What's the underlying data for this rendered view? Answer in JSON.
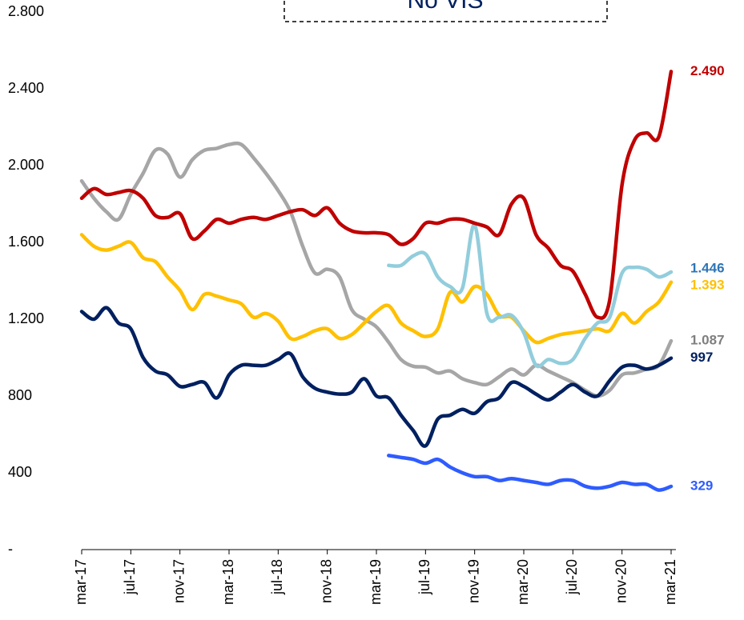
{
  "chart_data": {
    "type": "line",
    "title": "No VIS",
    "categories": [
      "mar-17",
      null,
      null,
      null,
      "jul-17",
      null,
      null,
      null,
      "nov-17",
      null,
      null,
      null,
      "mar-18",
      null,
      null,
      null,
      "jul-18",
      null,
      null,
      null,
      "nov-18",
      null,
      null,
      null,
      "mar-19",
      null,
      null,
      null,
      "jul-19",
      null,
      null,
      null,
      "nov-19",
      null,
      null,
      null,
      "mar-20",
      null,
      null,
      null,
      "jul-20",
      null,
      null,
      null,
      "nov-20",
      null,
      null,
      null,
      "mar-21"
    ],
    "ylim": [
      0,
      2800
    ],
    "yticks": [
      {
        "value": 0,
        "label": "-"
      },
      400,
      800,
      {
        "value": 1200,
        "label": "1.200"
      },
      {
        "value": 1600,
        "label": "1.600"
      },
      {
        "value": 2000,
        "label": "2.000"
      },
      {
        "value": 2400,
        "label": "2.400"
      },
      {
        "value": 2800,
        "label": "2.800"
      }
    ],
    "grid": false,
    "series": [
      {
        "color": "#a6a6a6",
        "label_color": "#7f7f7f",
        "end_label": "1.087",
        "values": [
          1920,
          1830,
          1760,
          1720,
          1850,
          1960,
          2080,
          2060,
          1940,
          2030,
          2080,
          2090,
          2110,
          2110,
          2040,
          1960,
          1870,
          1760,
          1580,
          1440,
          1460,
          1420,
          1250,
          1200,
          1160,
          1080,
          990,
          955,
          950,
          920,
          930,
          890,
          870,
          860,
          900,
          940,
          910,
          960,
          930,
          900,
          870,
          830,
          800,
          830,
          910,
          920,
          940,
          960,
          1087
        ]
      },
      {
        "color": "#ffc000",
        "label_color": "#ffc000",
        "end_label": "1.393",
        "values": [
          1640,
          1580,
          1560,
          1580,
          1600,
          1520,
          1500,
          1420,
          1350,
          1250,
          1330,
          1320,
          1300,
          1280,
          1210,
          1230,
          1190,
          1100,
          1110,
          1140,
          1150,
          1100,
          1120,
          1180,
          1240,
          1270,
          1180,
          1140,
          1110,
          1150,
          1340,
          1290,
          1370,
          1330,
          1220,
          1210,
          1140,
          1080,
          1100,
          1120,
          1130,
          1140,
          1150,
          1140,
          1230,
          1180,
          1240,
          1290,
          1393
        ]
      },
      {
        "color": "#002060",
        "label_color": "#002060",
        "end_label": "997",
        "values": [
          1240,
          1200,
          1260,
          1180,
          1150,
          1000,
          930,
          910,
          850,
          860,
          870,
          790,
          910,
          960,
          960,
          960,
          990,
          1020,
          900,
          840,
          820,
          810,
          820,
          890,
          800,
          790,
          700,
          620,
          540,
          680,
          700,
          730,
          710,
          770,
          790,
          870,
          850,
          810,
          780,
          820,
          860,
          820,
          800,
          880,
          950,
          960,
          940,
          960,
          997
        ]
      },
      {
        "color": "#92cddc",
        "label_color": "#2e75b6",
        "end_label": "1.446",
        "values": [
          null,
          null,
          null,
          null,
          null,
          null,
          null,
          null,
          null,
          null,
          null,
          null,
          null,
          null,
          null,
          null,
          null,
          null,
          null,
          null,
          null,
          null,
          null,
          null,
          null,
          1480,
          1480,
          1530,
          1540,
          1420,
          1370,
          1360,
          1690,
          1230,
          1210,
          1220,
          1130,
          960,
          990,
          970,
          990,
          1100,
          1180,
          1210,
          1440,
          1470,
          1460,
          1420,
          1446
        ]
      },
      {
        "color": "#2e5cff",
        "label_color": "#2e5cff",
        "end_label": "329",
        "values": [
          null,
          null,
          null,
          null,
          null,
          null,
          null,
          null,
          null,
          null,
          null,
          null,
          null,
          null,
          null,
          null,
          null,
          null,
          null,
          null,
          null,
          null,
          null,
          null,
          null,
          490,
          480,
          470,
          450,
          470,
          430,
          400,
          380,
          380,
          360,
          370,
          360,
          350,
          340,
          360,
          360,
          330,
          320,
          330,
          350,
          340,
          340,
          310,
          329
        ]
      },
      {
        "color": "#c00000",
        "label_color": "#c00000",
        "end_label": "2.490",
        "values": [
          1830,
          1880,
          1850,
          1860,
          1870,
          1830,
          1740,
          1730,
          1750,
          1620,
          1660,
          1720,
          1700,
          1720,
          1730,
          1720,
          1740,
          1760,
          1770,
          1740,
          1780,
          1700,
          1660,
          1650,
          1650,
          1640,
          1590,
          1620,
          1700,
          1700,
          1720,
          1720,
          1700,
          1680,
          1640,
          1800,
          1830,
          1640,
          1570,
          1480,
          1450,
          1330,
          1210,
          1300,
          1900,
          2130,
          2170,
          2150,
          2490
        ]
      }
    ]
  }
}
